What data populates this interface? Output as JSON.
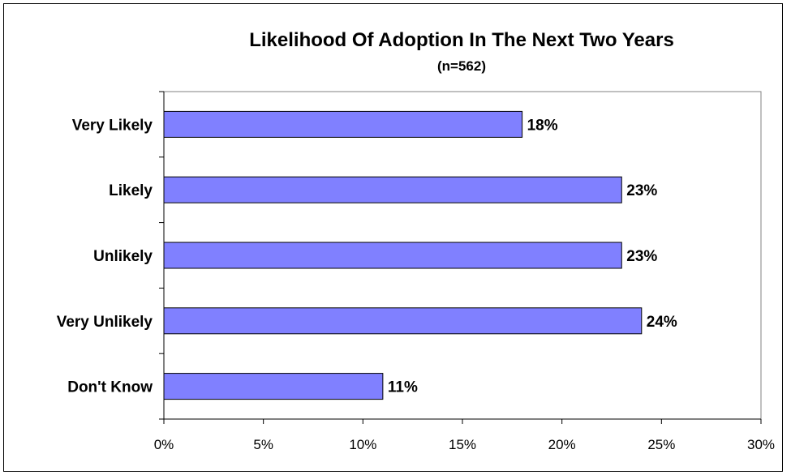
{
  "chart_data": {
    "type": "bar",
    "orientation": "horizontal",
    "title": "Likelihood Of Adoption In The Next Two Years",
    "subtitle": "(n=562)",
    "categories": [
      "Very Likely",
      "Likely",
      "Unlikely",
      "Very Unlikely",
      "Don't Know"
    ],
    "values": [
      18,
      23,
      23,
      24,
      11
    ],
    "data_labels": [
      "18%",
      "23%",
      "23%",
      "24%",
      "11%"
    ],
    "xlabel": "",
    "ylabel": "",
    "xlim": [
      0,
      30
    ],
    "x_ticks": [
      0,
      5,
      10,
      15,
      20,
      25,
      30
    ],
    "x_tick_labels": [
      "0%",
      "5%",
      "10%",
      "15%",
      "20%",
      "25%",
      "30%"
    ],
    "grid": false,
    "legend": "none",
    "colors": {
      "bar_fill": "#8080ff",
      "bar_stroke": "#000000",
      "plot_border": "#808080"
    }
  }
}
